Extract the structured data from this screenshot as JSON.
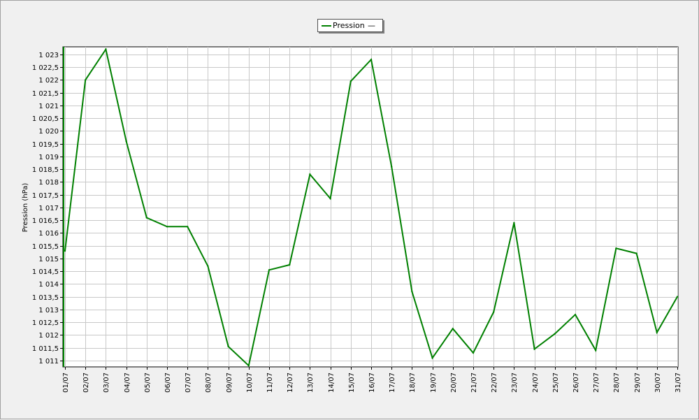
{
  "legend": {
    "label": "Pression",
    "marker": "—"
  },
  "chart_data": {
    "type": "line",
    "title": "",
    "xlabel": "",
    "ylabel": "Pression (hPa)",
    "categories": [
      "01/07",
      "02/07",
      "03/07",
      "04/07",
      "05/07",
      "06/07",
      "07/07",
      "08/07",
      "09/07",
      "10/07",
      "11/07",
      "12/07",
      "13/07",
      "14/07",
      "15/07",
      "16/07",
      "17/07",
      "18/07",
      "19/07",
      "20/07",
      "21/07",
      "22/07",
      "23/07",
      "24/07",
      "25/07",
      "26/07",
      "27/07",
      "28/07",
      "29/07",
      "30/07",
      "31/07"
    ],
    "series": [
      {
        "name": "Pression",
        "color": "#008000",
        "values": [
          1015.3,
          1022.0,
          1023.2,
          1019.6,
          1016.6,
          1016.25,
          1016.25,
          1014.7,
          1011.55,
          1010.8,
          1014.55,
          1014.75,
          1018.3,
          1017.35,
          1021.95,
          1022.8,
          1018.6,
          1013.7,
          1011.1,
          1012.25,
          1011.3,
          1012.9,
          1016.4,
          1011.45,
          1012.05,
          1012.8,
          1011.4,
          1015.4,
          1015.2,
          1012.1,
          1013.5
        ]
      }
    ],
    "ylim": [
      1010.75,
      1023.3
    ],
    "yticks": [
      {
        "value": 1011,
        "label": "1 011"
      },
      {
        "value": 1011.5,
        "label": "1 011,5"
      },
      {
        "value": 1012,
        "label": "1 012"
      },
      {
        "value": 1012.5,
        "label": "1 012,5"
      },
      {
        "value": 1013,
        "label": "1 013"
      },
      {
        "value": 1013.5,
        "label": "1 013,5"
      },
      {
        "value": 1014,
        "label": "1 014"
      },
      {
        "value": 1014.5,
        "label": "1 014,5"
      },
      {
        "value": 1015,
        "label": "1 015"
      },
      {
        "value": 1015.5,
        "label": "1 015,5"
      },
      {
        "value": 1016,
        "label": "1 016"
      },
      {
        "value": 1016.5,
        "label": "1 016,5"
      },
      {
        "value": 1017,
        "label": "1 017"
      },
      {
        "value": 1017.5,
        "label": "1 017,5"
      },
      {
        "value": 1018,
        "label": "1 018"
      },
      {
        "value": 1018.5,
        "label": "1 018,5"
      },
      {
        "value": 1019,
        "label": "1 019"
      },
      {
        "value": 1019.5,
        "label": "1 019,5"
      },
      {
        "value": 1020,
        "label": "1 020"
      },
      {
        "value": 1020.5,
        "label": "1 020,5"
      },
      {
        "value": 1021,
        "label": "1 021"
      },
      {
        "value": 1021.5,
        "label": "1 021,5"
      },
      {
        "value": 1022,
        "label": "1 022"
      },
      {
        "value": 1022.5,
        "label": "1 022,5"
      },
      {
        "value": 1023,
        "label": "1 023"
      }
    ],
    "grid": true,
    "legend_position": "top-center"
  }
}
